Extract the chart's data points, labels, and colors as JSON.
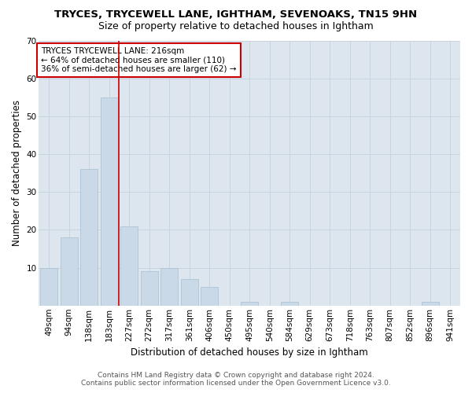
{
  "title": "TRYCES, TRYCEWELL LANE, IGHTHAM, SEVENOAKS, TN15 9HN",
  "subtitle": "Size of property relative to detached houses in Ightham",
  "xlabel": "Distribution of detached houses by size in Ightham",
  "ylabel": "Number of detached properties",
  "categories": [
    "49sqm",
    "94sqm",
    "138sqm",
    "183sqm",
    "227sqm",
    "272sqm",
    "317sqm",
    "361sqm",
    "406sqm",
    "450sqm",
    "495sqm",
    "540sqm",
    "584sqm",
    "629sqm",
    "673sqm",
    "718sqm",
    "763sqm",
    "807sqm",
    "852sqm",
    "896sqm",
    "941sqm"
  ],
  "values": [
    10,
    18,
    36,
    55,
    21,
    9,
    10,
    7,
    5,
    0,
    1,
    0,
    1,
    0,
    0,
    0,
    0,
    0,
    0,
    1,
    0
  ],
  "bar_color": "#c9d9e8",
  "bar_edgecolor": "#a8bfd0",
  "highlight_index": 3,
  "annotation_text_line1": "TRYCES TRYCEWELL LANE: 216sqm",
  "annotation_text_line2": "← 64% of detached houses are smaller (110)",
  "annotation_text_line3": "36% of semi-detached houses are larger (62) →",
  "annotation_box_color": "#ffffff",
  "annotation_box_edgecolor": "#cc0000",
  "ylim": [
    0,
    70
  ],
  "yticks": [
    0,
    10,
    20,
    30,
    40,
    50,
    60,
    70
  ],
  "grid_color": "#c8d4de",
  "bg_color": "#dde6ef",
  "footer_line1": "Contains HM Land Registry data © Crown copyright and database right 2024.",
  "footer_line2": "Contains public sector information licensed under the Open Government Licence v3.0.",
  "title_fontsize": 9.5,
  "subtitle_fontsize": 9,
  "axis_label_fontsize": 8.5,
  "tick_fontsize": 7.5,
  "annotation_fontsize": 7.5,
  "footer_fontsize": 6.5
}
